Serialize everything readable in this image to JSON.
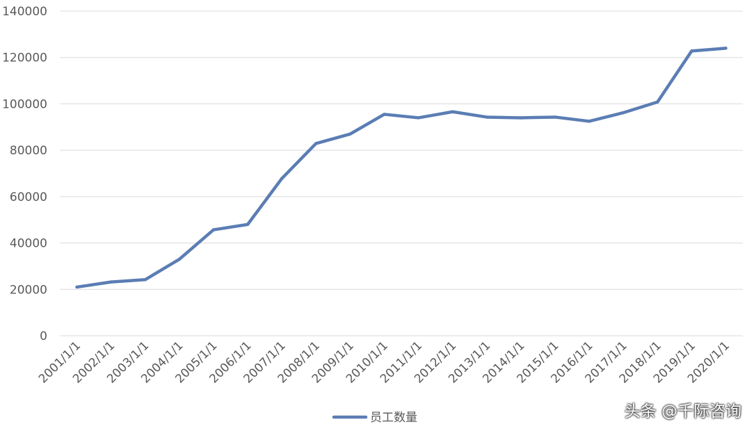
{
  "chart_data": {
    "type": "line",
    "title": "",
    "xlabel": "",
    "ylabel": "",
    "categories": [
      "2001/1/1",
      "2002/1/1",
      "2003/1/1",
      "2004/1/1",
      "2005/1/1",
      "2006/1/1",
      "2007/1/1",
      "2008/1/1",
      "2009/1/1",
      "2010/1/1",
      "2011/1/1",
      "2012/1/1",
      "2013/1/1",
      "2014/1/1",
      "2015/1/1",
      "2016/1/1",
      "2017/1/1",
      "2018/1/1",
      "2019/1/1",
      "2020/1/1"
    ],
    "series": [
      {
        "name": "员工数量",
        "color": "#5B7DB4",
        "values": [
          21000,
          23200,
          24200,
          33000,
          45700,
          48000,
          67800,
          82900,
          87000,
          95500,
          94000,
          96600,
          94300,
          94000,
          94300,
          92500,
          96200,
          100800,
          122800,
          124000
        ]
      }
    ],
    "ylim": [
      0,
      140000
    ],
    "yticks": [
      "0",
      "20000",
      "40000",
      "60000",
      "80000",
      "100000",
      "120000",
      "140000"
    ],
    "grid": true,
    "legend_position": "bottom"
  },
  "watermark": "头条 @千际咨询"
}
